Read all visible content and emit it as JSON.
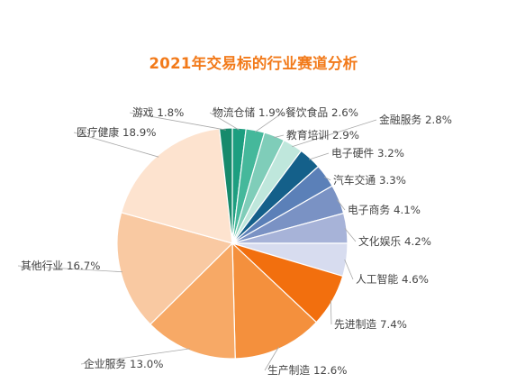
{
  "chart_data": {
    "type": "pie",
    "title": "2021年交易标的行业赛道分析",
    "start_category": "物流仓储",
    "direction": "clockwise",
    "series": [
      {
        "name": "物流仓储",
        "value": 1.9,
        "label": "物流仓储 1.9%",
        "color": "#1d9e80"
      },
      {
        "name": "餐饮食品",
        "value": 2.6,
        "label": "餐饮食品 2.6%",
        "color": "#45b89b"
      },
      {
        "name": "教育培训",
        "value": 2.9,
        "label": "教育培训 2.9%",
        "color": "#7fcdb9"
      },
      {
        "name": "金融服务",
        "value": 2.8,
        "label": "金融服务 2.8%",
        "color": "#bfe7dc"
      },
      {
        "name": "电子硬件",
        "value": 3.2,
        "label": "电子硬件 3.2%",
        "color": "#14608a"
      },
      {
        "name": "汽车交通",
        "value": 3.3,
        "label": "汽车交通 3.3%",
        "color": "#5b80b8"
      },
      {
        "name": "电子商务",
        "value": 4.1,
        "label": "电子商务 4.1%",
        "color": "#7a92c4"
      },
      {
        "name": "文化娱乐",
        "value": 4.2,
        "label": "文化娱乐 4.2%",
        "color": "#a7b3d8"
      },
      {
        "name": "人工智能",
        "value": 4.6,
        "label": "人工智能 4.6%",
        "color": "#d7dcef"
      },
      {
        "name": "先进制造",
        "value": 7.4,
        "label": "先进制造 7.4%",
        "color": "#f26f0e"
      },
      {
        "name": "生产制造",
        "value": 12.6,
        "label": "生产制造 12.6%",
        "color": "#f4903d"
      },
      {
        "name": "企业服务",
        "value": 13.0,
        "label": "企业服务 13.0%",
        "color": "#f7a966"
      },
      {
        "name": "其他行业",
        "value": 16.7,
        "label": "其他行业 16.7%",
        "color": "#f9c9a2"
      },
      {
        "name": "医疗健康",
        "value": 18.9,
        "label": "医疗健康 18.9%",
        "color": "#fde3cf"
      },
      {
        "name": "游戏",
        "value": 1.8,
        "label": "游戏 1.8%",
        "color": "#178a6c"
      }
    ],
    "legend": "none"
  }
}
